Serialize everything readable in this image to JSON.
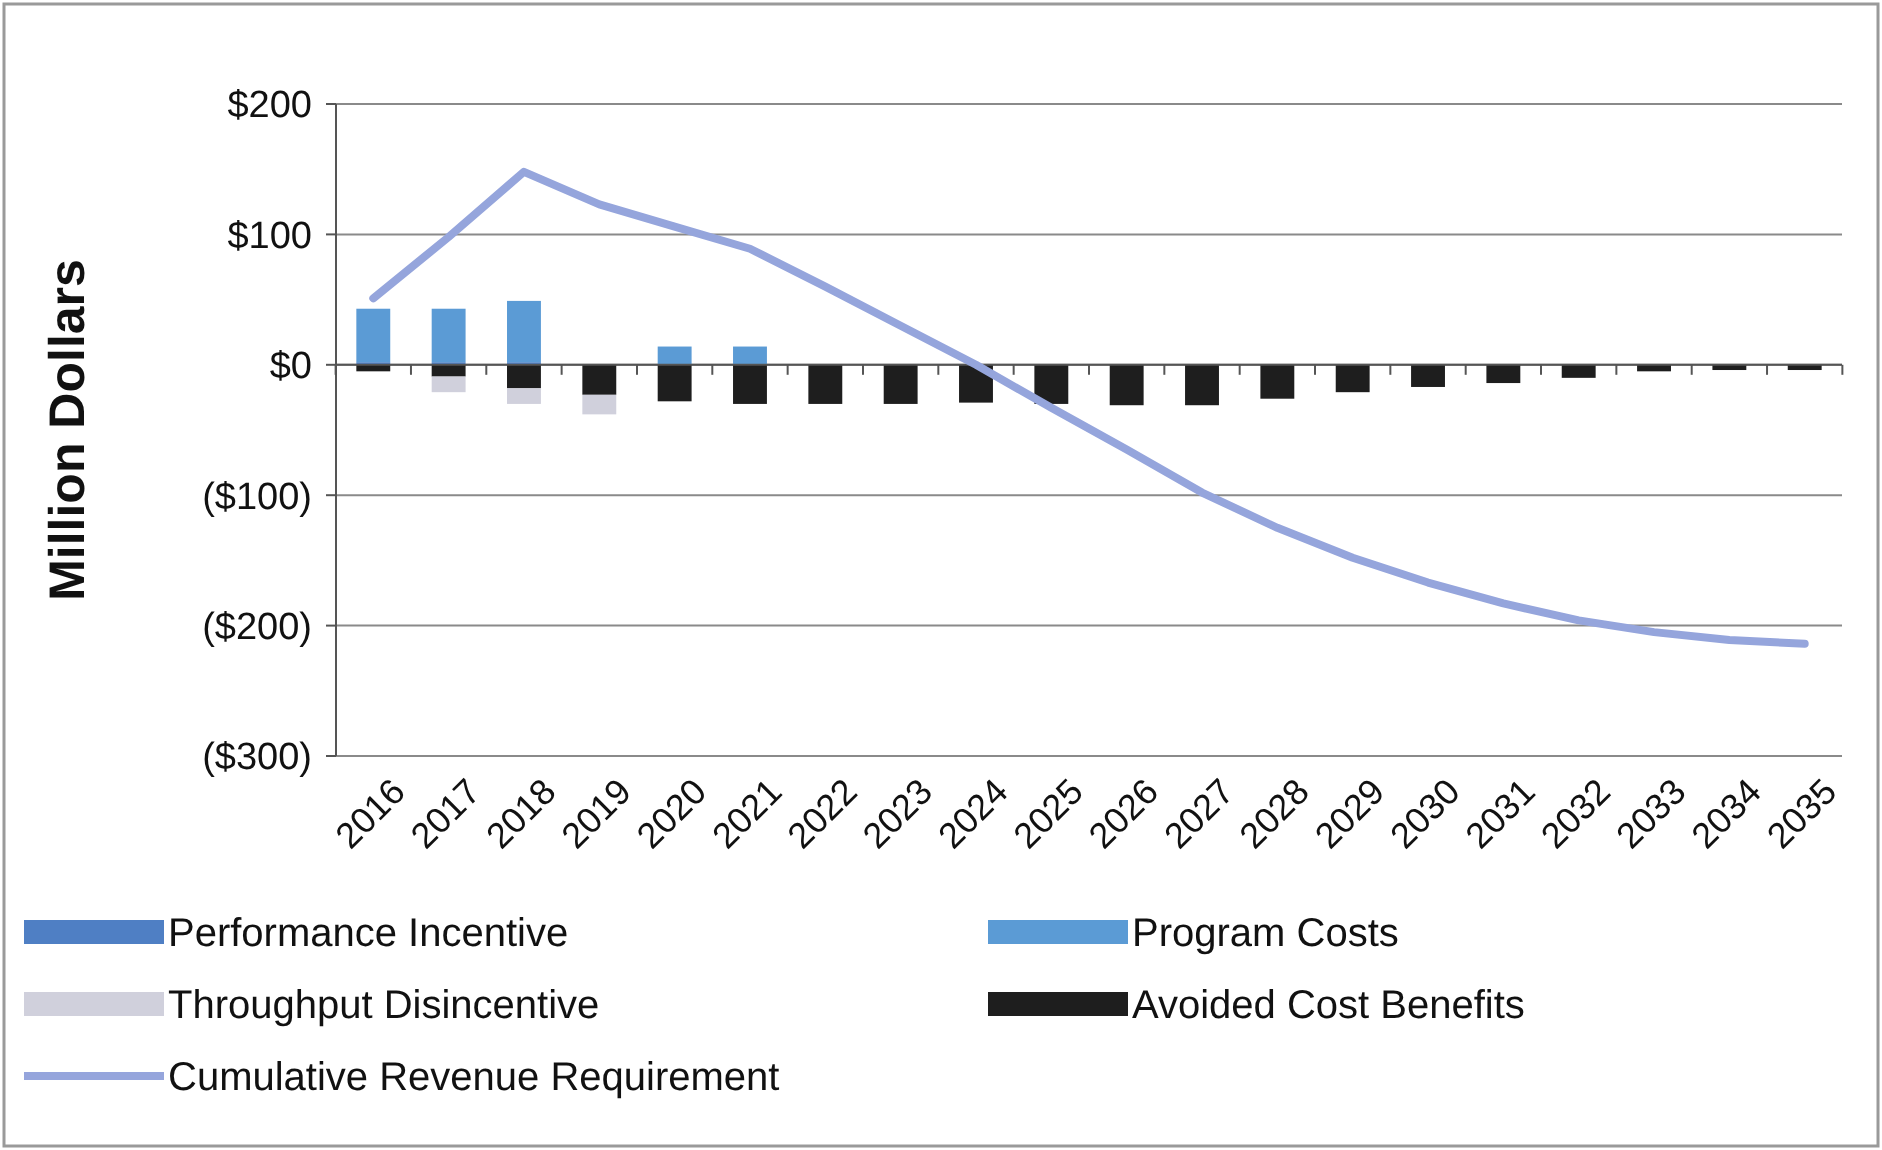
{
  "chart_data": {
    "type": "bar",
    "stacked": true,
    "ylabel": "Million Dollars",
    "categories": [
      "2016",
      "2017",
      "2018",
      "2019",
      "2020",
      "2021",
      "2022",
      "2023",
      "2024",
      "2025",
      "2026",
      "2027",
      "2028",
      "2029",
      "2030",
      "2031",
      "2032",
      "2033",
      "2034",
      "2035"
    ],
    "series": [
      {
        "name": "Performance Incentive",
        "color": "#4f7fc4",
        "values": [
          2,
          2,
          2,
          0,
          0,
          0,
          0,
          0,
          0,
          0,
          0,
          0,
          0,
          0,
          0,
          0,
          0,
          0,
          0,
          0
        ]
      },
      {
        "name": "Program Costs",
        "color": "#5b9bd5",
        "values": [
          41,
          41,
          47,
          0,
          14,
          14,
          0,
          0,
          0,
          0,
          0,
          0,
          0,
          0,
          0,
          0,
          0,
          0,
          0,
          0
        ]
      },
      {
        "name": "Avoided Cost Benefits",
        "color": "#1e1e1e",
        "values": [
          -5,
          -9,
          -18,
          -23,
          -28,
          -30,
          -30,
          -30,
          -29,
          -30,
          -31,
          -31,
          -26,
          -21,
          -17,
          -14,
          -10,
          -5,
          -4,
          -4
        ]
      },
      {
        "name": "Throughput Disincentive",
        "color": "#d0d0dc",
        "values": [
          null,
          -12,
          -12,
          -15,
          null,
          0,
          0,
          0,
          0,
          0,
          0,
          0,
          0,
          0,
          0,
          0,
          0,
          0,
          0,
          0
        ]
      },
      {
        "name": "Cumulative Revenue Requirement",
        "type": "line",
        "color": "#95a5dc",
        "values": [
          51,
          98,
          148,
          123,
          106,
          89,
          60,
          30,
          0,
          -33,
          -65,
          -98,
          -125,
          -148,
          -167,
          -183,
          -196,
          -205,
          -211,
          -214
        ]
      }
    ],
    "ylim": [
      -300,
      200
    ],
    "yticks": [
      {
        "value": -300,
        "label": "($300)"
      },
      {
        "value": -200,
        "label": "($200)"
      },
      {
        "value": -100,
        "label": "($100)"
      },
      {
        "value": 0,
        "label": "$0"
      },
      {
        "value": 100,
        "label": "$100"
      },
      {
        "value": 200,
        "label": "$200"
      }
    ],
    "grid": "y",
    "legend": "bottom"
  }
}
